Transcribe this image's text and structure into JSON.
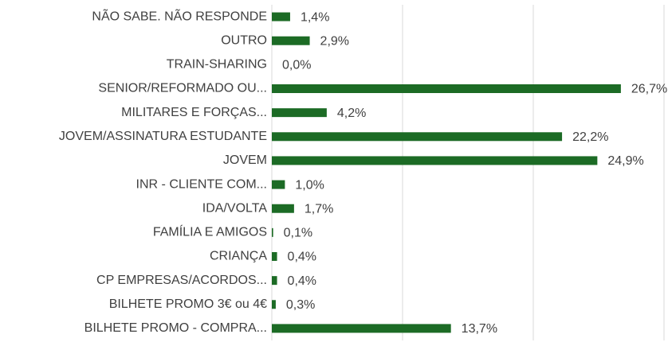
{
  "chart_data": {
    "type": "barh",
    "categories": [
      "NÃO SABE. NÃO RESPONDE",
      "OUTRO",
      "TRAIN-SHARING",
      "SENIOR/REFORMADO OU...",
      "MILITARES E FORÇAS...",
      "JOVEM/ASSINATURA ESTUDANTE",
      "JOVEM",
      "INR - CLIENTE COM...",
      "IDA/VOLTA",
      "FAMÍLIA E AMIGOS",
      "CRIANÇA",
      "CP EMPRESAS/ACORDOS...",
      "BILHETE PROMO 3€ ou 4€",
      "BILHETE PROMO - COMPRA..."
    ],
    "values": [
      1.4,
      2.9,
      0.0,
      26.7,
      4.2,
      22.2,
      24.9,
      1.0,
      1.7,
      0.1,
      0.4,
      0.4,
      0.3,
      13.7
    ],
    "value_labels": [
      "1,4%",
      "2,9%",
      "0,0%",
      "26,7%",
      "4,2%",
      "22,2%",
      "24,9%",
      "1,0%",
      "1,7%",
      "0,1%",
      "0,4%",
      "0,4%",
      "0,3%",
      "13,7%"
    ],
    "color": "#1c6b25",
    "xlim": [
      0,
      30
    ],
    "xticks": [
      0,
      10,
      20,
      30
    ],
    "grid": true
  }
}
